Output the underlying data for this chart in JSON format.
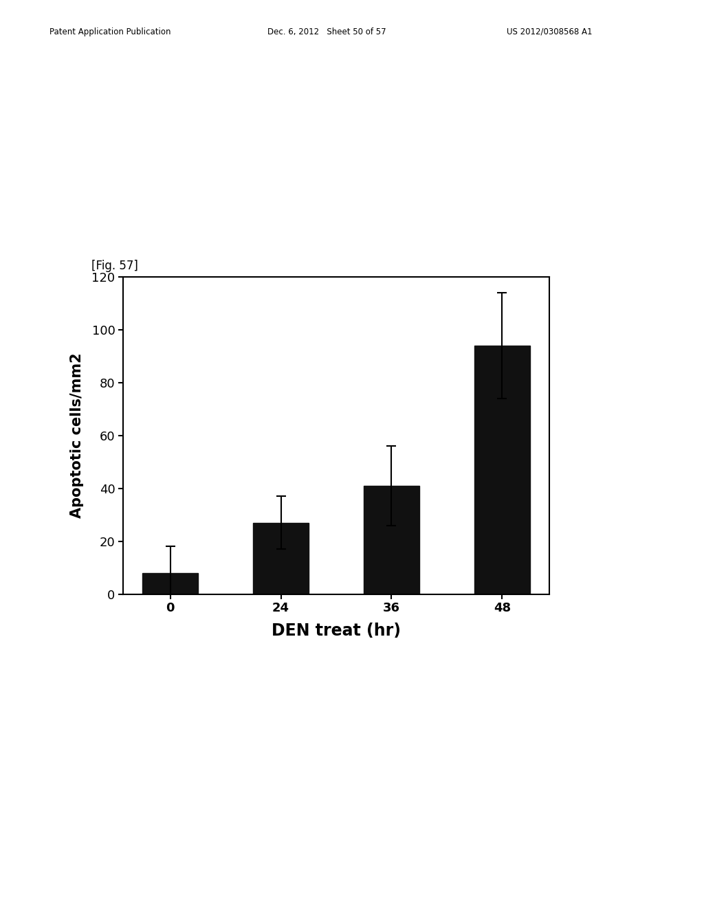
{
  "categories": [
    "0",
    "24",
    "36",
    "48"
  ],
  "values": [
    8,
    27,
    41,
    94
  ],
  "errors": [
    10,
    10,
    15,
    20
  ],
  "bar_color": "#111111",
  "ylabel": "Apoptotic cells/mm2",
  "xlabel": "DEN treat (hr)",
  "ylim": [
    0,
    120
  ],
  "yticks": [
    0,
    20,
    40,
    60,
    80,
    100,
    120
  ],
  "fig_label": "[Fig. 57]",
  "background_color": "#ffffff",
  "bar_width": 0.5,
  "xlabel_fontsize": 17,
  "ylabel_fontsize": 15,
  "tick_fontsize": 13,
  "header_left": "Patent Application Publication",
  "header_mid": "Dec. 6, 2012   Sheet 50 of 57",
  "header_right": "US 2012/0308568 A1"
}
